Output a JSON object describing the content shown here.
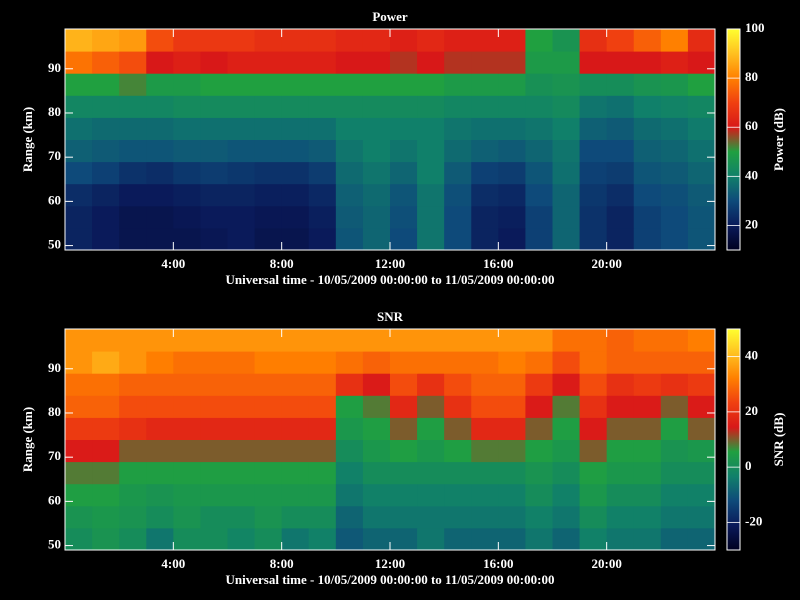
{
  "chart_data": [
    {
      "type": "heatmap",
      "title": "Power",
      "xlabel": "Universal time - 10/05/2009 00:00:00 to 11/05/2009 00:00:00",
      "ylabel": "Range (km)",
      "zlabel": "Power (dB)",
      "x": [
        0.5,
        1.5,
        2.5,
        3.5,
        4.5,
        5.5,
        6.5,
        7.5,
        8.5,
        9.5,
        10.5,
        11.5,
        12.5,
        13.5,
        14.5,
        15.5,
        16.5,
        17.5,
        18.5,
        19.5,
        20.5,
        21.5,
        22.5,
        23.5
      ],
      "y": [
        51.5,
        56.5,
        61.5,
        66.5,
        71.5,
        76.5,
        81.5,
        86.5,
        91.5,
        96.5
      ],
      "values": [
        [
          22,
          20,
          18,
          18,
          18,
          19,
          20,
          18,
          18,
          20,
          32,
          35,
          30,
          38,
          30,
          22,
          20,
          28,
          35,
          25,
          22,
          28,
          30,
          32
        ],
        [
          22,
          20,
          18,
          18,
          19,
          20,
          20,
          19,
          19,
          21,
          33,
          35,
          31,
          38,
          30,
          22,
          21,
          28,
          35,
          25,
          22,
          28,
          30,
          32
        ],
        [
          24,
          22,
          20,
          20,
          21,
          22,
          22,
          21,
          21,
          23,
          34,
          36,
          32,
          38,
          31,
          24,
          23,
          30,
          35,
          26,
          24,
          30,
          31,
          33
        ],
        [
          30,
          28,
          25,
          24,
          26,
          27,
          26,
          25,
          25,
          27,
          36,
          38,
          35,
          40,
          33,
          28,
          27,
          32,
          37,
          28,
          27,
          32,
          33,
          35
        ],
        [
          34,
          33,
          32,
          32,
          33,
          33,
          32,
          32,
          32,
          33,
          38,
          40,
          38,
          40,
          36,
          34,
          33,
          35,
          38,
          30,
          30,
          34,
          35,
          37
        ],
        [
          37,
          36,
          36,
          36,
          37,
          37,
          37,
          37,
          37,
          37,
          40,
          40,
          40,
          40,
          38,
          37,
          37,
          38,
          40,
          34,
          33,
          36,
          37,
          39
        ],
        [
          42,
          42,
          42,
          42,
          43,
          43,
          43,
          43,
          43,
          43,
          43,
          43,
          43,
          43,
          42,
          42,
          42,
          42,
          43,
          38,
          37,
          40,
          41,
          42
        ],
        [
          50,
          50,
          52,
          48,
          48,
          50,
          50,
          50,
          50,
          50,
          50,
          50,
          50,
          50,
          48,
          48,
          48,
          45,
          46,
          44,
          44,
          46,
          47,
          50
        ],
        [
          78,
          75,
          72,
          60,
          62,
          60,
          62,
          62,
          62,
          62,
          60,
          60,
          58,
          60,
          58,
          58,
          58,
          48,
          48,
          60,
          60,
          60,
          62,
          60
        ],
        [
          88,
          86,
          84,
          72,
          68,
          68,
          68,
          66,
          66,
          66,
          64,
          64,
          62,
          64,
          62,
          62,
          62,
          50,
          46,
          66,
          70,
          75,
          80,
          65
        ]
      ],
      "xlim": [
        0,
        24
      ],
      "xticks": [
        {
          "value": 4,
          "label": "4:00"
        },
        {
          "value": 8,
          "label": "8:00"
        },
        {
          "value": 12,
          "label": "12:00"
        },
        {
          "value": 16,
          "label": "16:00"
        },
        {
          "value": 20,
          "label": "20:00"
        }
      ],
      "ylim": [
        49,
        99
      ],
      "yticks": [
        50,
        60,
        70,
        80,
        90
      ],
      "zlim": [
        10,
        100
      ],
      "zticks": [
        20,
        40,
        60,
        80,
        100
      ],
      "colormap": [
        "#000020",
        "#0a1a5a",
        "#0e4a7a",
        "#10806a",
        "#20a040",
        "#d81818",
        "#f04010",
        "#ff8000",
        "#ffc020",
        "#ffff30"
      ]
    },
    {
      "type": "heatmap",
      "title": "SNR",
      "xlabel": "Universal time - 10/05/2009 00:00:00 to 11/05/2009 00:00:00",
      "ylabel": "Range (km)",
      "zlabel": "SNR (dB)",
      "x": [
        0.5,
        1.5,
        2.5,
        3.5,
        4.5,
        5.5,
        6.5,
        7.5,
        8.5,
        9.5,
        10.5,
        11.5,
        12.5,
        13.5,
        14.5,
        15.5,
        16.5,
        17.5,
        18.5,
        19.5,
        20.5,
        21.5,
        22.5,
        23.5
      ],
      "y": [
        51.5,
        56.5,
        61.5,
        66.5,
        71.5,
        76.5,
        81.5,
        86.5,
        91.5,
        96.5
      ],
      "values": [
        [
          0,
          2,
          0,
          -5,
          0,
          0,
          -2,
          0,
          -5,
          -3,
          -10,
          -8,
          -8,
          -5,
          -8,
          -8,
          -8,
          -5,
          -8,
          -3,
          -5,
          -5,
          -8,
          -8
        ],
        [
          2,
          3,
          2,
          0,
          2,
          0,
          0,
          2,
          0,
          0,
          -8,
          -5,
          -5,
          -5,
          -5,
          -5,
          -5,
          -3,
          -5,
          0,
          -3,
          -3,
          -5,
          -5
        ],
        [
          5,
          5,
          3,
          2,
          3,
          3,
          3,
          3,
          3,
          3,
          -5,
          -3,
          -3,
          -3,
          -3,
          -3,
          -3,
          0,
          -3,
          3,
          0,
          0,
          -3,
          -3
        ],
        [
          8,
          8,
          5,
          5,
          5,
          5,
          5,
          5,
          5,
          5,
          -3,
          0,
          0,
          0,
          0,
          0,
          0,
          2,
          0,
          5,
          3,
          3,
          0,
          0
        ],
        [
          15,
          15,
          10,
          10,
          10,
          10,
          10,
          10,
          10,
          10,
          0,
          3,
          5,
          3,
          5,
          8,
          8,
          5,
          3,
          10,
          5,
          5,
          2,
          3
        ],
        [
          22,
          22,
          20,
          18,
          18,
          18,
          18,
          18,
          18,
          18,
          3,
          5,
          10,
          5,
          10,
          18,
          18,
          10,
          5,
          15,
          10,
          10,
          5,
          10
        ],
        [
          28,
          28,
          25,
          25,
          25,
          25,
          25,
          25,
          25,
          25,
          5,
          8,
          18,
          10,
          20,
          25,
          25,
          15,
          8,
          20,
          15,
          15,
          10,
          15
        ],
        [
          30,
          30,
          28,
          28,
          28,
          28,
          28,
          28,
          28,
          28,
          20,
          15,
          25,
          20,
          25,
          28,
          28,
          22,
          15,
          25,
          20,
          22,
          20,
          22
        ],
        [
          35,
          38,
          35,
          32,
          30,
          30,
          30,
          32,
          32,
          32,
          30,
          28,
          30,
          30,
          30,
          30,
          32,
          30,
          25,
          30,
          28,
          28,
          28,
          28
        ],
        [
          35,
          35,
          35,
          35,
          35,
          35,
          35,
          35,
          35,
          35,
          35,
          35,
          35,
          35,
          35,
          35,
          35,
          35,
          30,
          30,
          28,
          30,
          30,
          32
        ]
      ],
      "xlim": [
        0,
        24
      ],
      "xticks": [
        {
          "value": 4,
          "label": "4:00"
        },
        {
          "value": 8,
          "label": "8:00"
        },
        {
          "value": 12,
          "label": "12:00"
        },
        {
          "value": 16,
          "label": "16:00"
        },
        {
          "value": 20,
          "label": "20:00"
        }
      ],
      "ylim": [
        49,
        99
      ],
      "yticks": [
        50,
        60,
        70,
        80,
        90
      ],
      "zlim": [
        -30,
        50
      ],
      "zticks": [
        -20,
        0,
        20,
        40
      ],
      "colormap": [
        "#000020",
        "#0a1a5a",
        "#0e4a7a",
        "#10806a",
        "#20a040",
        "#d81818",
        "#f04010",
        "#ff8000",
        "#ffc020",
        "#ffff30"
      ]
    }
  ]
}
